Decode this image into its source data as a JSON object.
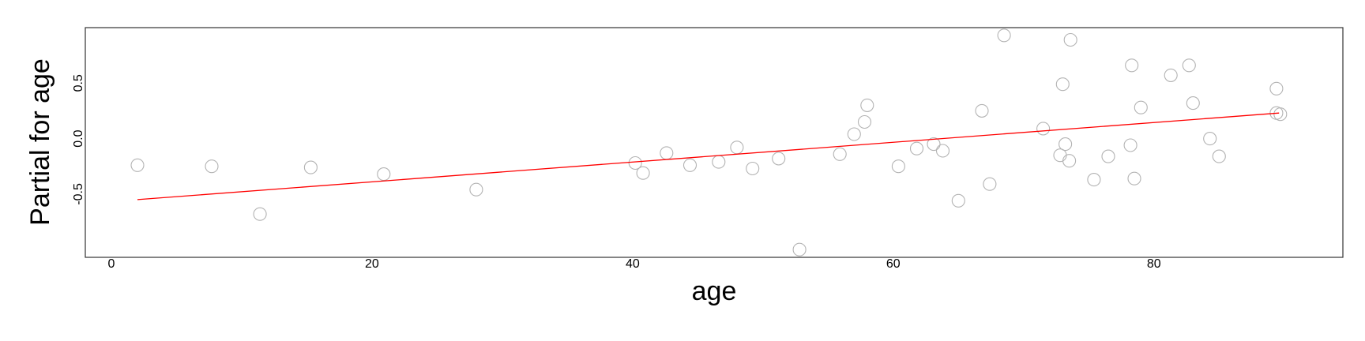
{
  "chart_data": {
    "type": "scatter",
    "title": "",
    "xlabel": "age",
    "ylabel": "Partial for age",
    "xlim": [
      -2,
      94.5
    ],
    "ylim": [
      -1.07,
      1.0
    ],
    "x_ticks": [
      0,
      20,
      40,
      60,
      80
    ],
    "x_tick_labels": [
      "0",
      "20",
      "40",
      "60",
      "80"
    ],
    "y_ticks": [
      -0.5,
      0.0,
      0.5
    ],
    "y_tick_labels": [
      "-0.5",
      "0.0",
      "0.5"
    ],
    "grid": false,
    "legend": "none",
    "colors": {
      "points": "#b3b3b3",
      "fit_line": "#ff0000",
      "frame": "#333333"
    },
    "series": [
      {
        "kind": "points",
        "points": [
          [
            2.0,
            -0.24
          ],
          [
            7.7,
            -0.25
          ],
          [
            11.4,
            -0.68
          ],
          [
            15.3,
            -0.26
          ],
          [
            20.9,
            -0.32
          ],
          [
            28.0,
            -0.46
          ],
          [
            40.2,
            -0.22
          ],
          [
            40.8,
            -0.31
          ],
          [
            42.6,
            -0.13
          ],
          [
            44.4,
            -0.24
          ],
          [
            46.6,
            -0.21
          ],
          [
            48.0,
            -0.08
          ],
          [
            49.2,
            -0.27
          ],
          [
            51.2,
            -0.18
          ],
          [
            52.8,
            -1.0
          ],
          [
            55.9,
            -0.14
          ],
          [
            57.0,
            0.04
          ],
          [
            57.8,
            0.15
          ],
          [
            58.0,
            0.3
          ],
          [
            60.4,
            -0.25
          ],
          [
            61.8,
            -0.09
          ],
          [
            63.1,
            -0.05
          ],
          [
            63.8,
            -0.11
          ],
          [
            65.0,
            -0.56
          ],
          [
            66.8,
            0.25
          ],
          [
            67.4,
            -0.41
          ],
          [
            68.5,
            0.93
          ],
          [
            71.5,
            0.09
          ],
          [
            72.8,
            -0.15
          ],
          [
            73.0,
            0.49
          ],
          [
            73.2,
            -0.05
          ],
          [
            73.5,
            -0.2
          ],
          [
            73.6,
            0.89
          ],
          [
            75.4,
            -0.37
          ],
          [
            76.5,
            -0.16
          ],
          [
            78.2,
            -0.06
          ],
          [
            78.3,
            0.66
          ],
          [
            78.5,
            -0.36
          ],
          [
            79.0,
            0.28
          ],
          [
            81.3,
            0.57
          ],
          [
            82.7,
            0.66
          ],
          [
            83.0,
            0.32
          ],
          [
            84.3,
            0.0
          ],
          [
            85.0,
            -0.16
          ],
          [
            89.4,
            0.45
          ],
          [
            89.4,
            0.23
          ],
          [
            89.7,
            0.22
          ]
        ]
      },
      {
        "kind": "line",
        "points": [
          [
            2.0,
            -0.55
          ],
          [
            89.6,
            0.23
          ]
        ]
      }
    ]
  }
}
